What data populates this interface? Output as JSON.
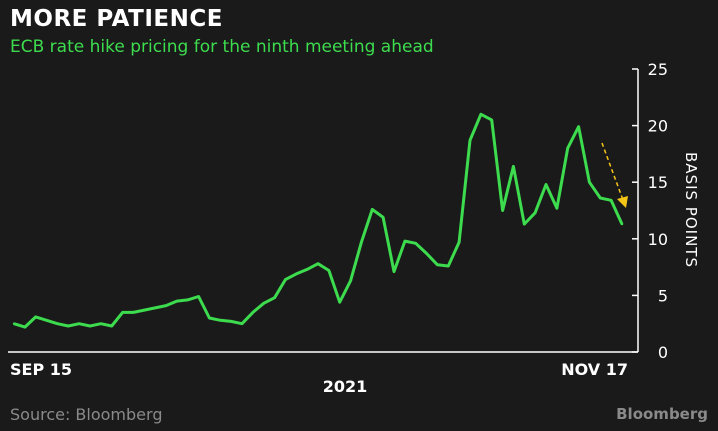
{
  "title": "MORE PATIENCE",
  "subtitle": "ECB rate hike pricing for the ninth meeting ahead",
  "source": "Source: Bloomberg",
  "brand": "Bloomberg",
  "colors": {
    "background": "#1a1a1a",
    "line": "#3ddc4e",
    "arrow": "#f5c518",
    "text": "#ffffff",
    "muted": "#8a8a8a"
  },
  "chart_data": {
    "type": "line",
    "ylabel": "BASIS POINTS",
    "xlabel": "2021",
    "x_start_label": "SEP 15",
    "x_end_label": "NOV 17",
    "ylim": [
      0,
      25
    ],
    "yticks": [
      "0",
      "5",
      "10",
      "15",
      "20",
      "25"
    ],
    "grid": false,
    "axis_side": "right",
    "annotation": "downward dashed arrow",
    "series": [
      {
        "values": [
          2.5,
          2.2,
          3.1,
          2.8,
          2.5,
          2.3,
          2.5,
          2.3,
          2.5,
          2.3,
          3.5,
          3.5,
          3.7,
          3.9,
          4.1,
          4.5,
          4.6,
          4.9,
          3.0,
          2.8,
          2.7,
          2.5,
          3.5,
          4.3,
          4.8,
          6.4,
          6.9,
          7.3,
          7.8,
          7.2,
          4.4,
          6.3,
          9.7,
          12.6,
          11.9,
          7.1,
          9.8,
          9.6,
          8.7,
          7.7,
          7.6,
          9.7,
          18.7,
          21.0,
          20.5,
          12.5,
          16.4,
          11.3,
          12.3,
          14.8,
          12.7,
          18.0,
          19.9,
          15.0,
          13.6,
          13.4,
          11.3
        ]
      }
    ]
  }
}
